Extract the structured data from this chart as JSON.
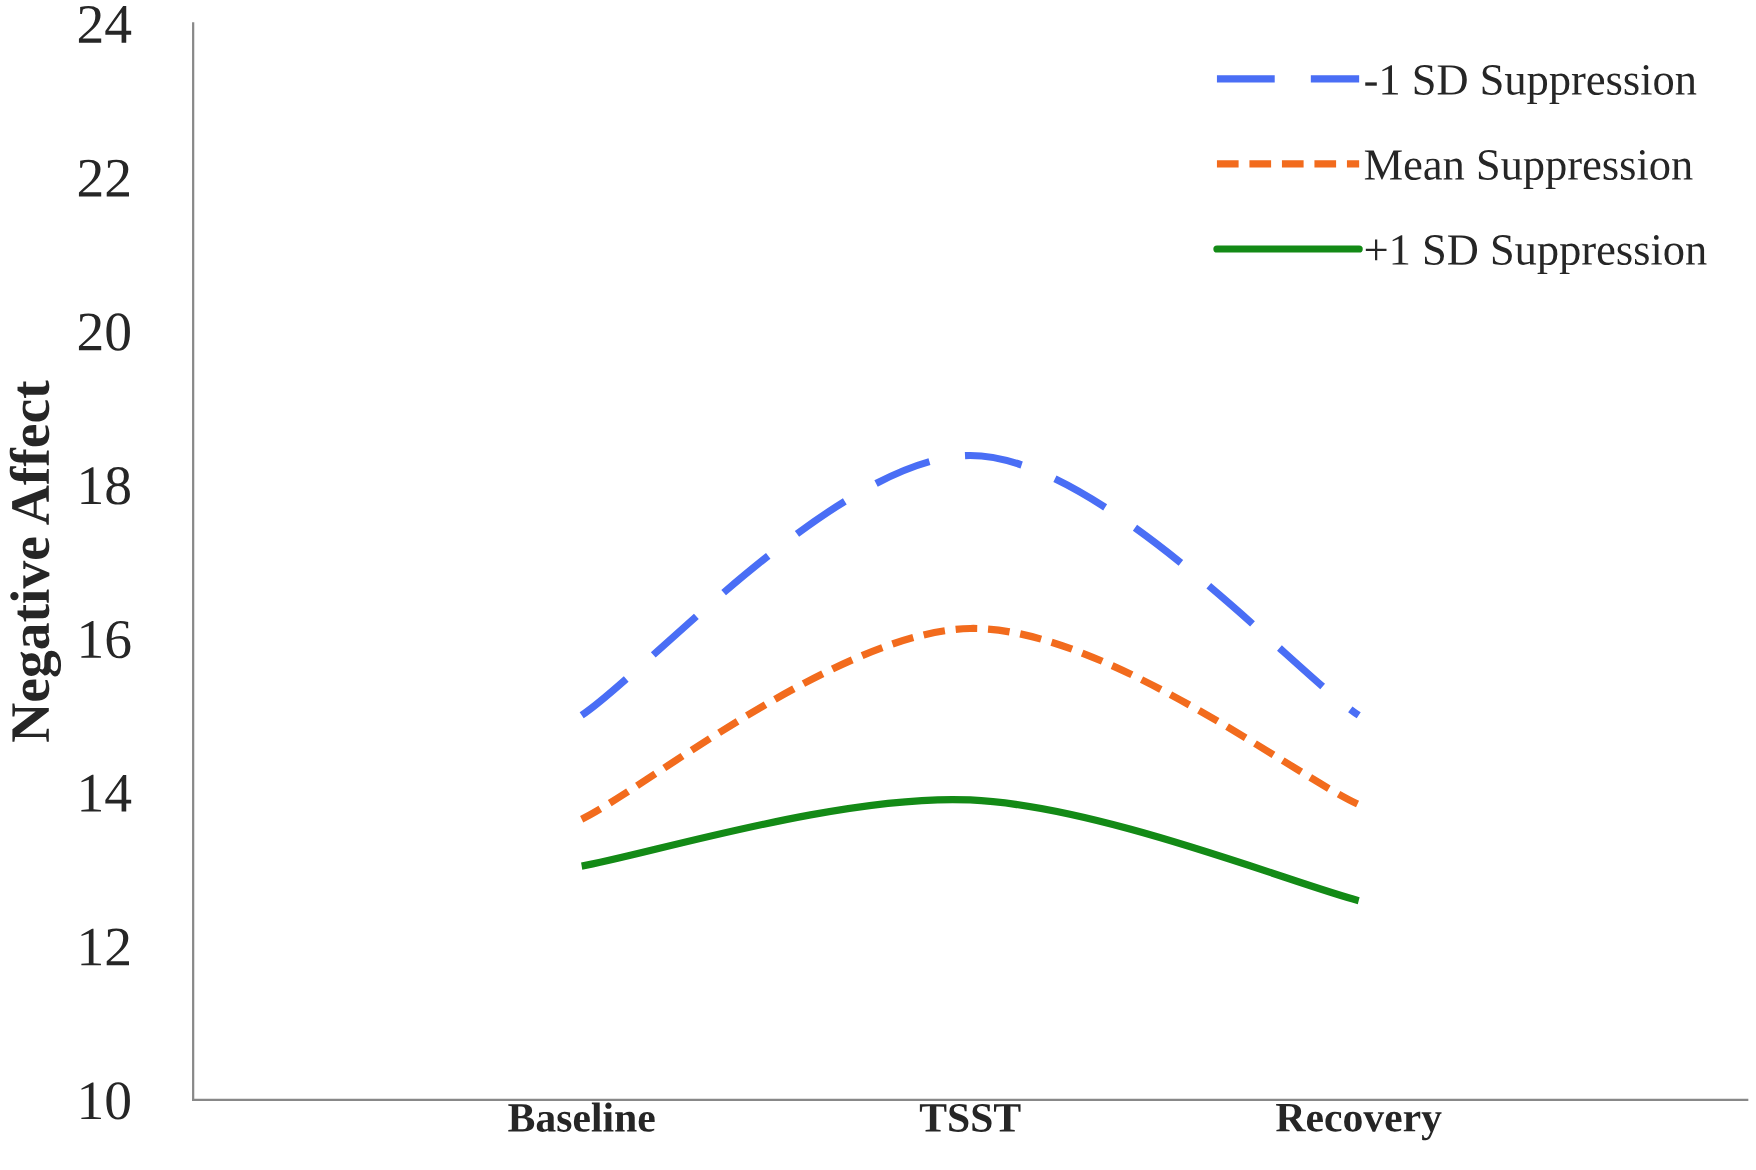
{
  "chart_data": {
    "type": "line",
    "ylabel": "Negative Affect",
    "categories": [
      "Baseline",
      "TSST",
      "Recovery"
    ],
    "series": [
      {
        "name": "-1 SD Suppression",
        "color": "#4a6ef5",
        "values": [
          15.0,
          18.38,
          15.0
        ],
        "line_style": "dashed"
      },
      {
        "name": "Mean Suppression",
        "color": "#f26b1d",
        "values": [
          13.65,
          16.13,
          13.84
        ],
        "line_style": "dotted"
      },
      {
        "name": "+1 SD Suppression",
        "color": "#138a16",
        "values": [
          13.04,
          13.9,
          12.59
        ],
        "line_style": "solid"
      }
    ],
    "ylim": [
      10,
      24
    ],
    "yticks": [
      10,
      12,
      14,
      16,
      18,
      20,
      22,
      24
    ],
    "grid": false,
    "legend": "top right",
    "marker": "none"
  }
}
